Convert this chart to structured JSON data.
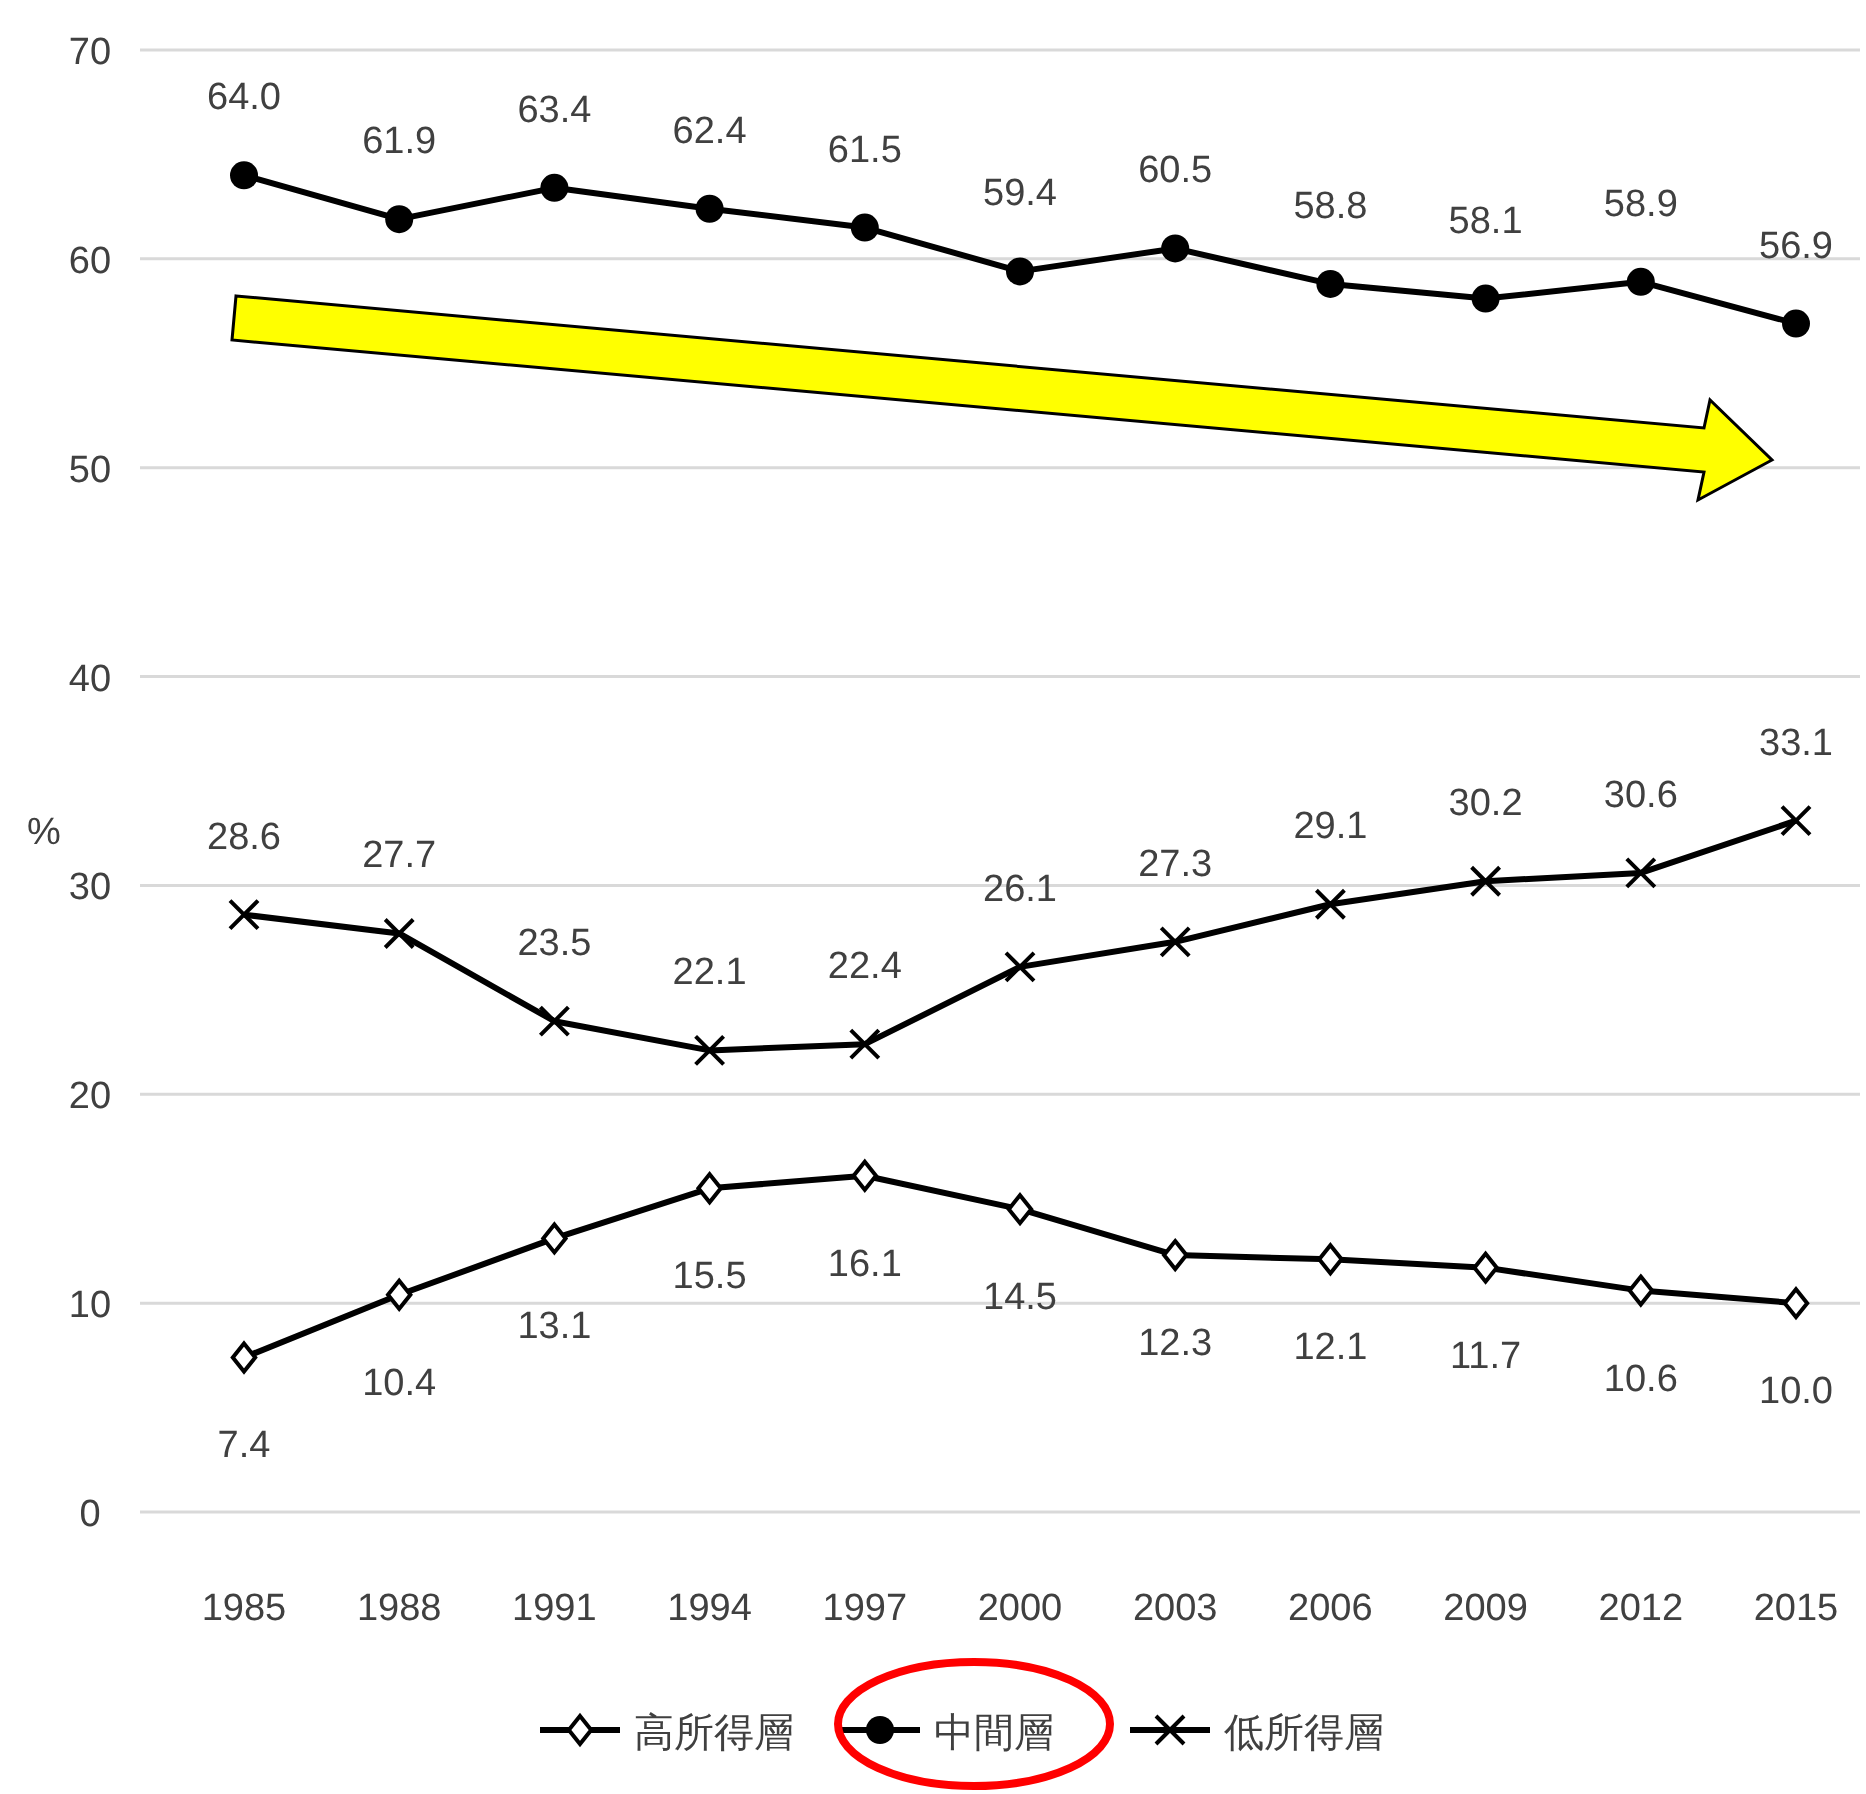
{
  "chart_data": {
    "type": "line",
    "categories": [
      "1985",
      "1988",
      "1991",
      "1994",
      "1997",
      "2000",
      "2003",
      "2006",
      "2009",
      "2012",
      "2015"
    ],
    "ylabel": "%",
    "ylim": [
      0,
      70
    ],
    "yticks": [
      0,
      10,
      20,
      30,
      40,
      50,
      60,
      70
    ],
    "grid": "y",
    "legend": "bottom",
    "series": [
      {
        "name": "高所得層",
        "color": "#000000",
        "marker": "diamond",
        "values": [
          7.4,
          10.4,
          13.1,
          15.5,
          16.1,
          14.5,
          12.3,
          12.1,
          11.7,
          10.6,
          10.0
        ],
        "value_labels": [
          "7.4",
          "10.4",
          "13.1",
          "15.5",
          "16.1",
          "14.5",
          "12.3",
          "12.1",
          "11.7",
          "10.6",
          "10.0"
        ]
      },
      {
        "name": "中間層",
        "color": "#000000",
        "marker": "circle",
        "values": [
          64.0,
          61.9,
          63.4,
          62.4,
          61.5,
          59.4,
          60.5,
          58.8,
          58.1,
          58.9,
          56.9
        ],
        "value_labels": [
          "64.0",
          "61.9",
          "63.4",
          "62.4",
          "61.5",
          "59.4",
          "60.5",
          "58.8",
          "58.1",
          "58.9",
          "56.9"
        ]
      },
      {
        "name": "低所得層",
        "color": "#000000",
        "marker": "cross",
        "values": [
          28.6,
          27.7,
          23.5,
          22.1,
          22.4,
          26.1,
          27.3,
          29.1,
          30.2,
          30.6,
          33.1
        ],
        "value_labels": [
          "28.6",
          "27.7",
          "23.5",
          "22.1",
          "22.4",
          "26.1",
          "27.3",
          "29.1",
          "30.2",
          "30.6",
          "33.1"
        ]
      }
    ]
  }
}
